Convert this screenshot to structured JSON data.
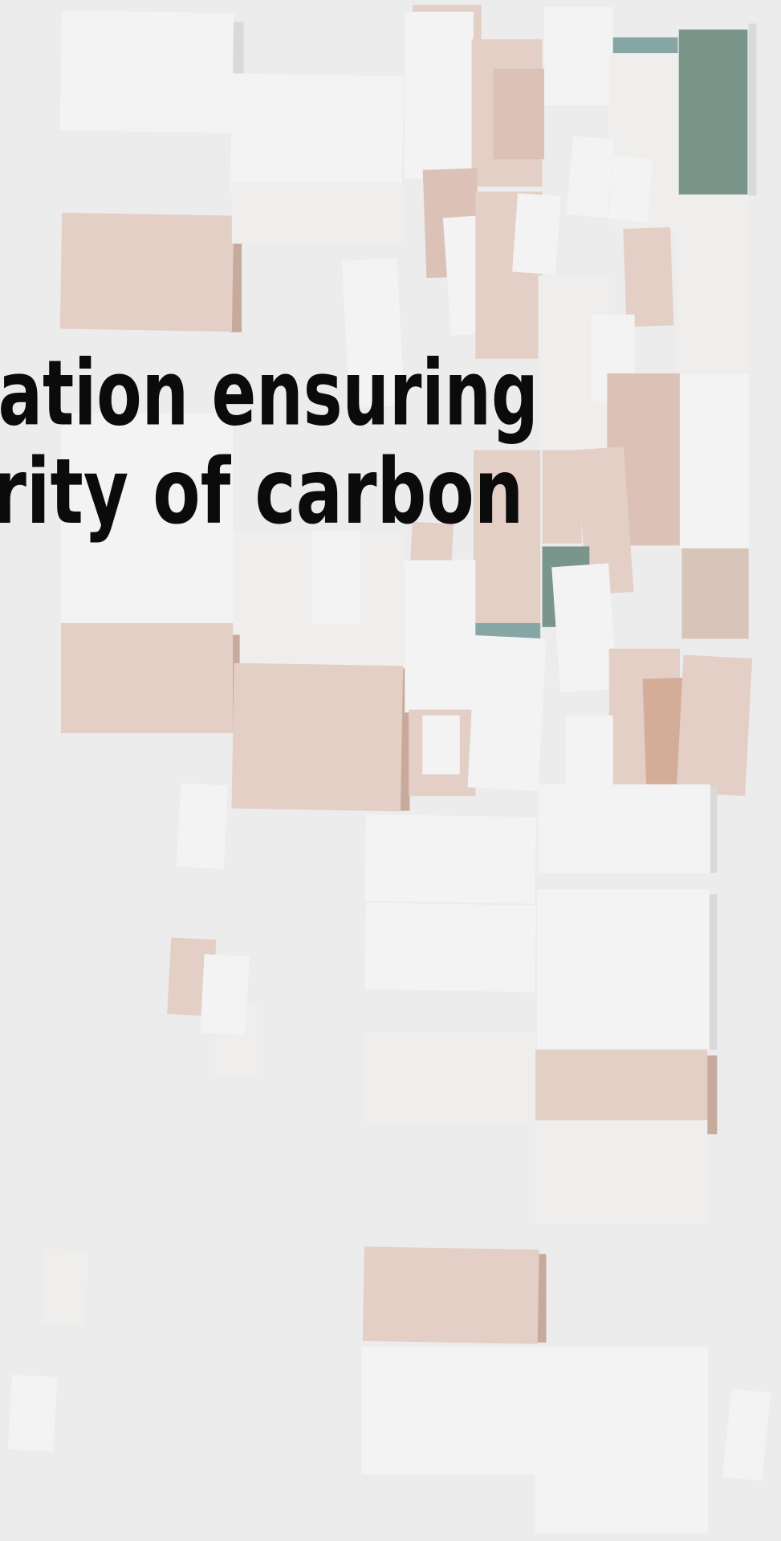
{
  "headline": {
    "lines": [
      "ation ensuring",
      "rity of carbon"
    ]
  }
}
